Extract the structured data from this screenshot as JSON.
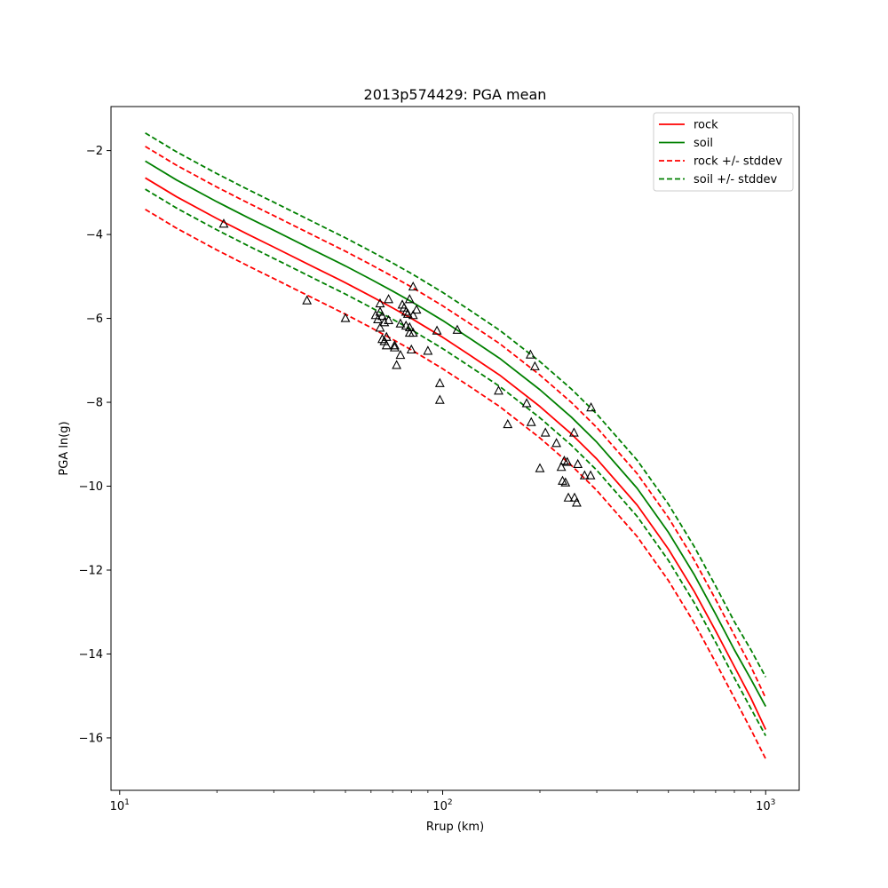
{
  "chart_data": {
    "type": "line",
    "title": "2013p574429: PGA mean",
    "xlabel": "Rrup (km)",
    "ylabel": "PGA ln(g)",
    "xscale": "log",
    "xlim": [
      9.4,
      1270
    ],
    "ylim": [
      -17.25,
      -0.95
    ],
    "x_ticks": [
      {
        "value": 10,
        "base": "10",
        "exp": "1"
      },
      {
        "value": 100,
        "base": "10",
        "exp": "2"
      },
      {
        "value": 1000,
        "base": "10",
        "exp": "3"
      }
    ],
    "y_ticks": [
      {
        "value": -2,
        "label": "−2"
      },
      {
        "value": -4,
        "label": "−4"
      },
      {
        "value": -6,
        "label": "−6"
      },
      {
        "value": -8,
        "label": "−8"
      },
      {
        "value": -10,
        "label": "−10"
      },
      {
        "value": -12,
        "label": "−12"
      },
      {
        "value": -14,
        "label": "−14"
      },
      {
        "value": -16,
        "label": "−16"
      }
    ],
    "grid": false,
    "legend_position": "upper right",
    "x": [
      12,
      15,
      20,
      25,
      30,
      40,
      50,
      60,
      70,
      80,
      100,
      120,
      150,
      200,
      250,
      300,
      400,
      500,
      600,
      700,
      800,
      900,
      1000
    ],
    "series": [
      {
        "name": "rock",
        "color": "#ff0000",
        "dash": "solid",
        "values": [
          -2.65,
          -3.1,
          -3.62,
          -4.0,
          -4.3,
          -4.78,
          -5.15,
          -5.47,
          -5.75,
          -6.0,
          -6.45,
          -6.85,
          -7.35,
          -8.1,
          -8.75,
          -9.35,
          -10.45,
          -11.5,
          -12.5,
          -13.45,
          -14.3,
          -15.05,
          -15.8
        ]
      },
      {
        "name": "soil",
        "color": "#008000",
        "dash": "solid",
        "values": [
          -2.25,
          -2.7,
          -3.22,
          -3.6,
          -3.9,
          -4.38,
          -4.75,
          -5.07,
          -5.35,
          -5.6,
          -6.05,
          -6.45,
          -6.95,
          -7.7,
          -8.35,
          -8.95,
          -10.05,
          -11.1,
          -12.1,
          -13.05,
          -13.9,
          -14.6,
          -15.25
        ]
      },
      {
        "name": "rock +/- stddev",
        "color": "#ff0000",
        "dash": "dashed",
        "values": [
          -1.9,
          -2.35,
          -2.87,
          -3.25,
          -3.55,
          -4.03,
          -4.4,
          -4.72,
          -5.0,
          -5.25,
          -5.7,
          -6.1,
          -6.6,
          -7.35,
          -8.0,
          -8.6,
          -9.7,
          -10.75,
          -11.75,
          -12.7,
          -13.55,
          -14.3,
          -15.05
        ]
      },
      {
        "name": "",
        "color": "#ff0000",
        "dash": "dashed",
        "values": [
          -3.4,
          -3.85,
          -4.37,
          -4.75,
          -5.05,
          -5.53,
          -5.9,
          -6.22,
          -6.5,
          -6.75,
          -7.2,
          -7.6,
          -8.1,
          -8.85,
          -9.5,
          -10.1,
          -11.2,
          -12.25,
          -13.25,
          -14.2,
          -15.05,
          -15.8,
          -16.5
        ]
      },
      {
        "name": "soil +/- stddev",
        "color": "#008000",
        "dash": "dashed",
        "values": [
          -1.58,
          -2.03,
          -2.55,
          -2.93,
          -3.23,
          -3.71,
          -4.08,
          -4.4,
          -4.68,
          -4.93,
          -5.38,
          -5.78,
          -6.28,
          -7.03,
          -7.68,
          -8.28,
          -9.38,
          -10.43,
          -11.43,
          -12.38,
          -13.23,
          -13.9,
          -14.55
        ]
      },
      {
        "name": "",
        "color": "#008000",
        "dash": "dashed",
        "values": [
          -2.92,
          -3.37,
          -3.89,
          -4.27,
          -4.57,
          -5.05,
          -5.42,
          -5.74,
          -6.02,
          -6.27,
          -6.72,
          -7.12,
          -7.62,
          -8.37,
          -9.02,
          -9.62,
          -10.72,
          -11.77,
          -12.77,
          -13.72,
          -14.57,
          -15.3,
          -15.95
        ]
      }
    ],
    "points": [
      [
        21,
        -3.75
      ],
      [
        38,
        -5.58
      ],
      [
        50,
        -6.0
      ],
      [
        62,
        -5.93
      ],
      [
        63,
        -6.03
      ],
      [
        64,
        -5.65
      ],
      [
        64,
        -5.85
      ],
      [
        64,
        -6.23
      ],
      [
        65,
        -5.95
      ],
      [
        65,
        -6.5
      ],
      [
        66,
        -6.55
      ],
      [
        66,
        -6.1
      ],
      [
        67,
        -6.45
      ],
      [
        67,
        -6.65
      ],
      [
        68,
        -5.55
      ],
      [
        68,
        -6.05
      ],
      [
        71,
        -6.65
      ],
      [
        71,
        -6.7
      ],
      [
        72,
        -7.12
      ],
      [
        74,
        -6.88
      ],
      [
        74,
        -6.13
      ],
      [
        75,
        -5.68
      ],
      [
        76,
        -5.75
      ],
      [
        77,
        -5.85
      ],
      [
        77,
        -6.18
      ],
      [
        78,
        -5.9
      ],
      [
        79,
        -5.55
      ],
      [
        79,
        -6.35
      ],
      [
        79,
        -6.22
      ],
      [
        80,
        -6.75
      ],
      [
        81,
        -5.93
      ],
      [
        81,
        -6.35
      ],
      [
        81,
        -5.25
      ],
      [
        83,
        -5.8
      ],
      [
        90,
        -6.78
      ],
      [
        96,
        -6.3
      ],
      [
        98,
        -7.55
      ],
      [
        98,
        -7.95
      ],
      [
        111,
        -6.28
      ],
      [
        149,
        -7.73
      ],
      [
        159,
        -8.53
      ],
      [
        182,
        -8.03
      ],
      [
        187,
        -6.87
      ],
      [
        188,
        -8.48
      ],
      [
        193,
        -7.15
      ],
      [
        200,
        -9.58
      ],
      [
        208,
        -8.73
      ],
      [
        225,
        -8.98
      ],
      [
        233,
        -9.55
      ],
      [
        235,
        -9.88
      ],
      [
        238,
        -9.4
      ],
      [
        240,
        -9.92
      ],
      [
        243,
        -9.43
      ],
      [
        245,
        -10.28
      ],
      [
        255,
        -8.73
      ],
      [
        256,
        -10.28
      ],
      [
        260,
        -10.4
      ],
      [
        262,
        -9.48
      ],
      [
        275,
        -9.75
      ],
      [
        287,
        -9.75
      ],
      [
        288,
        -8.13
      ]
    ],
    "points_style": {
      "marker": "open-triangle",
      "color": "#000000"
    }
  }
}
